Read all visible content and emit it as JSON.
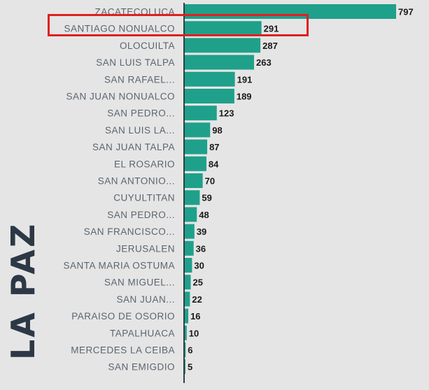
{
  "region_label": "LA PAZ",
  "colors": {
    "bar": "#1fa08a",
    "axis": "#333d47",
    "highlight": "#e02020"
  },
  "chart_data": {
    "type": "bar",
    "orientation": "horizontal",
    "title": "",
    "xlabel": "",
    "ylabel": "",
    "xlim": [
      0,
      797
    ],
    "categories": [
      "ZACATECOLUCA",
      "SANTIAGO NONUALCO",
      "OLOCUILTA",
      "SAN LUIS TALPA",
      "SAN RAFAEL...",
      "SAN JUAN NONUALCO",
      "SAN PEDRO...",
      "SAN LUIS LA...",
      "SAN JUAN TALPA",
      "EL ROSARIO",
      "SAN ANTONIO...",
      "CUYULTITAN",
      "SAN PEDRO...",
      "SAN FRANCISCO...",
      "JERUSALEN",
      "SANTA MARIA OSTUMA",
      "SAN MIGUEL...",
      "SAN JUAN...",
      "PARAISO DE OSORIO",
      "TAPALHUACA",
      "MERCEDES LA CEIBA",
      "SAN EMIGDIO"
    ],
    "values": [
      797,
      291,
      287,
      263,
      191,
      189,
      123,
      98,
      87,
      84,
      70,
      59,
      48,
      39,
      36,
      30,
      25,
      22,
      16,
      10,
      6,
      5
    ],
    "highlighted_category": "SANTIAGO NONUALCO"
  }
}
